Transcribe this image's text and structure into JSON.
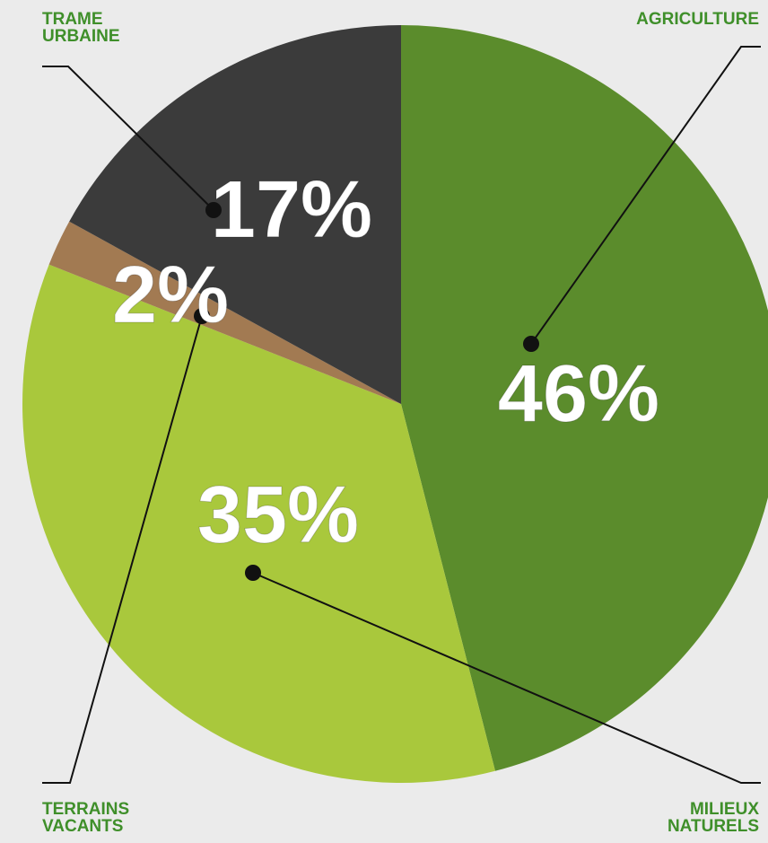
{
  "chart_data": {
    "type": "pie",
    "categories": [
      "AGRICULTURE",
      "MILIEUX NATURELS",
      "TERRAINS VACANTS",
      "TRAME URBAINE"
    ],
    "values": [
      46,
      35,
      2,
      17
    ],
    "value_labels": [
      "46%",
      "35%",
      "2%",
      "17%"
    ],
    "colors": [
      "#5b8c2c",
      "#a9c83c",
      "#a27a52",
      "#3b3b3b"
    ]
  }
}
